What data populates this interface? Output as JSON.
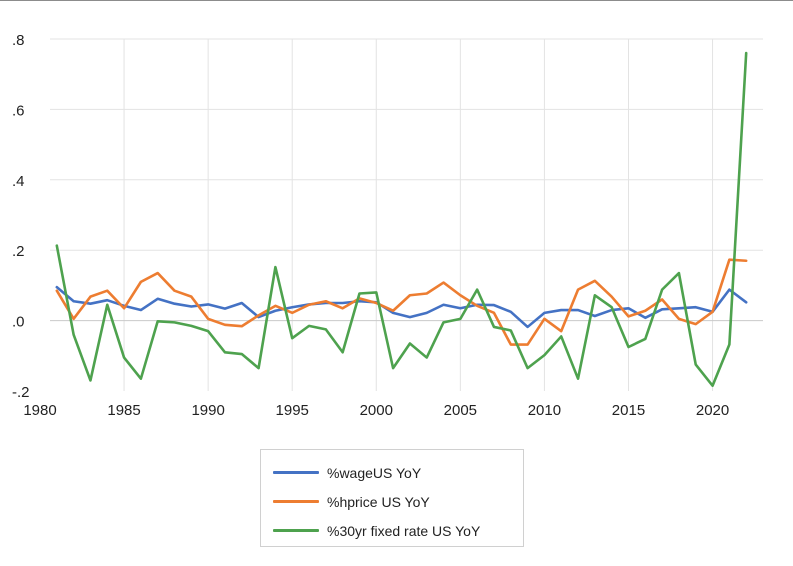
{
  "chart_data": {
    "type": "line",
    "title": "",
    "xlabel": "",
    "ylabel": "",
    "xlim": [
      1980,
      2023
    ],
    "ylim": [
      -0.2,
      0.8
    ],
    "x_ticks": [
      1980,
      1985,
      1990,
      1995,
      2000,
      2005,
      2010,
      2015,
      2020
    ],
    "x_tick_labels": [
      "1980",
      "1985",
      "1990",
      "1995",
      "2000",
      "2005",
      "2010",
      "2015",
      "2020"
    ],
    "y_ticks": [
      -0.2,
      0.0,
      0.2,
      0.4,
      0.6,
      0.8
    ],
    "y_tick_labels": [
      "-.2",
      ".0",
      ".2",
      ".4",
      ".6",
      ".8"
    ],
    "grid": true,
    "legend_position": "bottom",
    "x": [
      1981,
      1982,
      1983,
      1984,
      1985,
      1986,
      1987,
      1988,
      1989,
      1990,
      1991,
      1992,
      1993,
      1994,
      1995,
      1996,
      1997,
      1998,
      1999,
      2000,
      2001,
      2002,
      2003,
      2004,
      2005,
      2006,
      2007,
      2008,
      2009,
      2010,
      2011,
      2012,
      2013,
      2014,
      2015,
      2016,
      2017,
      2018,
      2019,
      2020,
      2021,
      2022
    ],
    "series": [
      {
        "name": "%wageUS YoY",
        "color": "#4472c4",
        "values": [
          0.095,
          0.055,
          0.048,
          0.058,
          0.042,
          0.03,
          0.062,
          0.048,
          0.04,
          0.046,
          0.034,
          0.05,
          0.01,
          0.028,
          0.038,
          0.046,
          0.05,
          0.05,
          0.055,
          0.052,
          0.022,
          0.01,
          0.022,
          0.045,
          0.035,
          0.045,
          0.044,
          0.025,
          -0.018,
          0.022,
          0.03,
          0.03,
          0.013,
          0.03,
          0.035,
          0.008,
          0.032,
          0.035,
          0.038,
          0.025,
          0.088,
          0.052
        ]
      },
      {
        "name": "%hprice US YoY",
        "color": "#ed7d31",
        "values": [
          0.085,
          0.005,
          0.068,
          0.085,
          0.035,
          0.11,
          0.135,
          0.085,
          0.068,
          0.005,
          -0.012,
          -0.016,
          0.015,
          0.042,
          0.022,
          0.045,
          0.055,
          0.035,
          0.063,
          0.05,
          0.028,
          0.072,
          0.077,
          0.108,
          0.072,
          0.042,
          0.022,
          -0.068,
          -0.068,
          0.005,
          -0.03,
          0.088,
          0.113,
          0.068,
          0.012,
          0.028,
          0.06,
          0.005,
          -0.01,
          0.025,
          0.173,
          0.17
        ]
      },
      {
        "name": "%30yr fixed rate US YoY",
        "color": "#4ea24e",
        "values": [
          0.213,
          -0.04,
          -0.17,
          0.045,
          -0.105,
          -0.165,
          -0.002,
          -0.005,
          -0.015,
          -0.03,
          -0.09,
          -0.095,
          -0.135,
          0.152,
          -0.05,
          -0.015,
          -0.025,
          -0.09,
          0.077,
          0.08,
          -0.135,
          -0.065,
          -0.105,
          -0.005,
          0.005,
          0.088,
          -0.018,
          -0.028,
          -0.135,
          -0.098,
          -0.045,
          -0.165,
          0.072,
          0.038,
          -0.075,
          -0.052,
          0.088,
          0.135,
          -0.125,
          -0.185,
          -0.068,
          0.76
        ]
      }
    ]
  }
}
